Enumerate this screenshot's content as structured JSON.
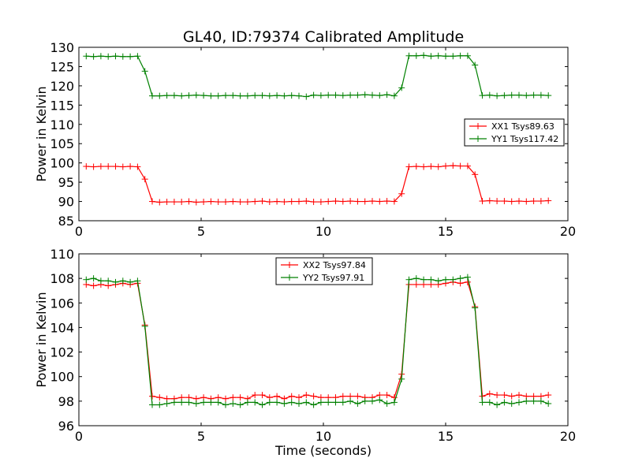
{
  "title": "GL40, ID:79374 Calibrated Amplitude",
  "chart_data": [
    {
      "type": "line",
      "ylabel": "Power in Kelvin",
      "xlabel": "",
      "xlim": [
        0,
        20
      ],
      "ylim": [
        85,
        130
      ],
      "xticks": [
        0,
        5,
        10,
        15,
        20
      ],
      "yticks": [
        85,
        90,
        95,
        100,
        105,
        110,
        115,
        120,
        125,
        130
      ],
      "legend": "center-right",
      "x": [
        0.3,
        0.6,
        0.9,
        1.2,
        1.5,
        1.8,
        2.1,
        2.4,
        2.7,
        3.0,
        3.3,
        3.6,
        3.9,
        4.2,
        4.5,
        4.8,
        5.1,
        5.4,
        5.7,
        6.0,
        6.3,
        6.6,
        6.9,
        7.2,
        7.5,
        7.8,
        8.1,
        8.4,
        8.7,
        9.0,
        9.3,
        9.6,
        9.9,
        10.2,
        10.5,
        10.8,
        11.1,
        11.4,
        11.7,
        12.0,
        12.3,
        12.6,
        12.9,
        13.2,
        13.5,
        13.8,
        14.1,
        14.4,
        14.7,
        15.0,
        15.3,
        15.6,
        15.9,
        16.2,
        16.5,
        16.8,
        17.1,
        17.4,
        17.7,
        18.0,
        18.3,
        18.6,
        18.9,
        19.2
      ],
      "series": [
        {
          "name": "XX1 Tsys89.63",
          "color": "#ff0000",
          "values": [
            99.1,
            99.0,
            99.1,
            99.1,
            99.1,
            99.0,
            99.1,
            99.0,
            95.8,
            90.0,
            89.8,
            89.9,
            89.9,
            89.9,
            90.0,
            89.8,
            89.9,
            90.0,
            89.9,
            89.9,
            90.0,
            89.9,
            89.9,
            90.0,
            90.1,
            89.9,
            90.0,
            89.9,
            90.0,
            90.0,
            90.1,
            89.9,
            89.9,
            90.0,
            90.1,
            90.0,
            90.1,
            90.0,
            90.0,
            90.1,
            90.0,
            90.1,
            90.0,
            92.0,
            99.0,
            99.1,
            99.0,
            99.1,
            99.0,
            99.2,
            99.3,
            99.2,
            99.2,
            97.0,
            90.1,
            90.2,
            90.1,
            90.1,
            90.0,
            90.1,
            90.0,
            90.1,
            90.1,
            90.2
          ]
        },
        {
          "name": "YY1 Tsys117.42",
          "color": "#008000",
          "values": [
            127.7,
            127.6,
            127.7,
            127.6,
            127.7,
            127.6,
            127.6,
            127.7,
            123.8,
            117.4,
            117.4,
            117.5,
            117.5,
            117.4,
            117.5,
            117.6,
            117.5,
            117.4,
            117.4,
            117.5,
            117.5,
            117.4,
            117.4,
            117.5,
            117.5,
            117.4,
            117.5,
            117.4,
            117.5,
            117.4,
            117.2,
            117.6,
            117.5,
            117.6,
            117.6,
            117.5,
            117.6,
            117.6,
            117.7,
            117.6,
            117.5,
            117.7,
            117.4,
            119.5,
            127.8,
            127.8,
            127.9,
            127.7,
            127.8,
            127.7,
            127.7,
            127.8,
            127.8,
            125.4,
            117.5,
            117.6,
            117.4,
            117.5,
            117.6,
            117.6,
            117.5,
            117.6,
            117.6,
            117.5
          ]
        }
      ]
    },
    {
      "type": "line",
      "ylabel": "Power in Kelvin",
      "xlabel": "Time (seconds)",
      "xlim": [
        0,
        20
      ],
      "ylim": [
        96,
        110
      ],
      "xticks": [
        0,
        5,
        10,
        15,
        20
      ],
      "yticks": [
        96,
        98,
        100,
        102,
        104,
        106,
        108,
        110
      ],
      "legend": "upper-center",
      "x": [
        0.3,
        0.6,
        0.9,
        1.2,
        1.5,
        1.8,
        2.1,
        2.4,
        2.7,
        3.0,
        3.3,
        3.6,
        3.9,
        4.2,
        4.5,
        4.8,
        5.1,
        5.4,
        5.7,
        6.0,
        6.3,
        6.6,
        6.9,
        7.2,
        7.5,
        7.8,
        8.1,
        8.4,
        8.7,
        9.0,
        9.3,
        9.6,
        9.9,
        10.2,
        10.5,
        10.8,
        11.1,
        11.4,
        11.7,
        12.0,
        12.3,
        12.6,
        12.9,
        13.2,
        13.5,
        13.8,
        14.1,
        14.4,
        14.7,
        15.0,
        15.3,
        15.6,
        15.9,
        16.2,
        16.5,
        16.8,
        17.1,
        17.4,
        17.7,
        18.0,
        18.3,
        18.6,
        18.9,
        19.2
      ],
      "series": [
        {
          "name": "XX2 Tsys97.84",
          "color": "#ff0000",
          "values": [
            107.5,
            107.4,
            107.5,
            107.4,
            107.5,
            107.6,
            107.5,
            107.6,
            104.2,
            98.4,
            98.3,
            98.2,
            98.2,
            98.3,
            98.3,
            98.2,
            98.3,
            98.2,
            98.3,
            98.2,
            98.3,
            98.3,
            98.2,
            98.5,
            98.5,
            98.3,
            98.4,
            98.2,
            98.4,
            98.3,
            98.5,
            98.4,
            98.3,
            98.3,
            98.3,
            98.4,
            98.4,
            98.4,
            98.3,
            98.3,
            98.5,
            98.5,
            98.3,
            100.2,
            107.5,
            107.5,
            107.5,
            107.5,
            107.5,
            107.6,
            107.7,
            107.6,
            107.7,
            105.7,
            98.4,
            98.6,
            98.5,
            98.5,
            98.4,
            98.5,
            98.4,
            98.4,
            98.4,
            98.5
          ]
        },
        {
          "name": "YY2 Tsys97.91",
          "color": "#008000",
          "values": [
            107.9,
            108.0,
            107.8,
            107.8,
            107.7,
            107.8,
            107.7,
            107.8,
            104.1,
            97.7,
            97.7,
            97.8,
            97.9,
            97.9,
            97.9,
            97.8,
            97.9,
            97.9,
            97.9,
            97.7,
            97.8,
            97.7,
            97.9,
            97.9,
            97.7,
            97.9,
            97.9,
            97.8,
            97.9,
            97.8,
            97.9,
            97.7,
            97.9,
            97.9,
            97.9,
            97.9,
            98.0,
            97.8,
            98.0,
            98.0,
            98.1,
            97.8,
            97.9,
            99.8,
            107.9,
            108.0,
            107.9,
            107.9,
            107.8,
            107.9,
            107.9,
            108.0,
            108.1,
            105.6,
            97.9,
            97.9,
            97.7,
            97.9,
            97.8,
            97.9,
            98.0,
            98.0,
            98.0,
            97.8
          ]
        }
      ]
    }
  ]
}
